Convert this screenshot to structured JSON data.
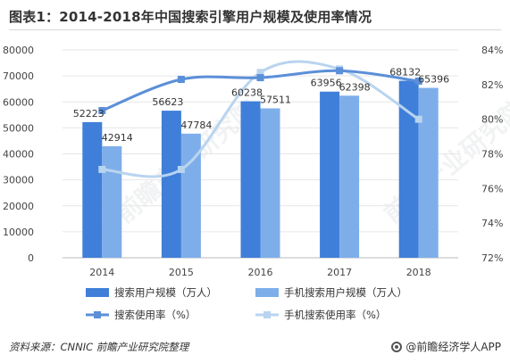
{
  "title": "图表1：2014-2018年中国搜索引擎用户规模及使用率情况",
  "source_text": "资料来源：CNNIC 前瞻产业研究院整理",
  "brand_text": "@前瞻经济学人APP",
  "watermark_text": "前瞻产业研究院",
  "colors": {
    "bar_users": "#3f7fd9",
    "bar_mobile": "#7eaeea",
    "line_users": "#5b8fd8",
    "line_mobile": "#b9d4ef",
    "axis_text": "#444444",
    "gridline": "#e6e6e6"
  },
  "chart_data": {
    "type": "bar",
    "categories": [
      "2014",
      "2015",
      "2016",
      "2017",
      "2018"
    ],
    "ylim": [
      0,
      80000
    ],
    "y_ticks": [
      "0",
      "10000",
      "20000",
      "30000",
      "40000",
      "50000",
      "60000",
      "70000",
      "80000"
    ],
    "y2lim": [
      72,
      84
    ],
    "y2_ticks": [
      "72%",
      "74%",
      "76%",
      "78%",
      "80%",
      "82%",
      "84%"
    ],
    "series": [
      {
        "name": "搜索用户规模（万人）",
        "kind": "bar",
        "axis": "left",
        "values": [
          52223,
          56623,
          60238,
          63956,
          68132
        ],
        "labels": [
          "52223",
          "56623",
          "60238",
          "63956",
          "68132"
        ]
      },
      {
        "name": "手机搜索用户规模（万人）",
        "kind": "bar",
        "axis": "left",
        "values": [
          42914,
          47784,
          57511,
          62398,
          65396
        ],
        "labels": [
          "42914",
          "47784",
          "57511",
          "62398",
          "65396"
        ]
      },
      {
        "name": "搜索使用率（%）",
        "kind": "line",
        "axis": "right",
        "values": [
          80.5,
          82.3,
          82.4,
          82.8,
          82.2
        ]
      },
      {
        "name": "手机搜索使用率（%）",
        "kind": "line",
        "axis": "right",
        "values": [
          77.1,
          77.1,
          82.7,
          82.9,
          80.0
        ]
      }
    ],
    "legend": "bottom"
  }
}
